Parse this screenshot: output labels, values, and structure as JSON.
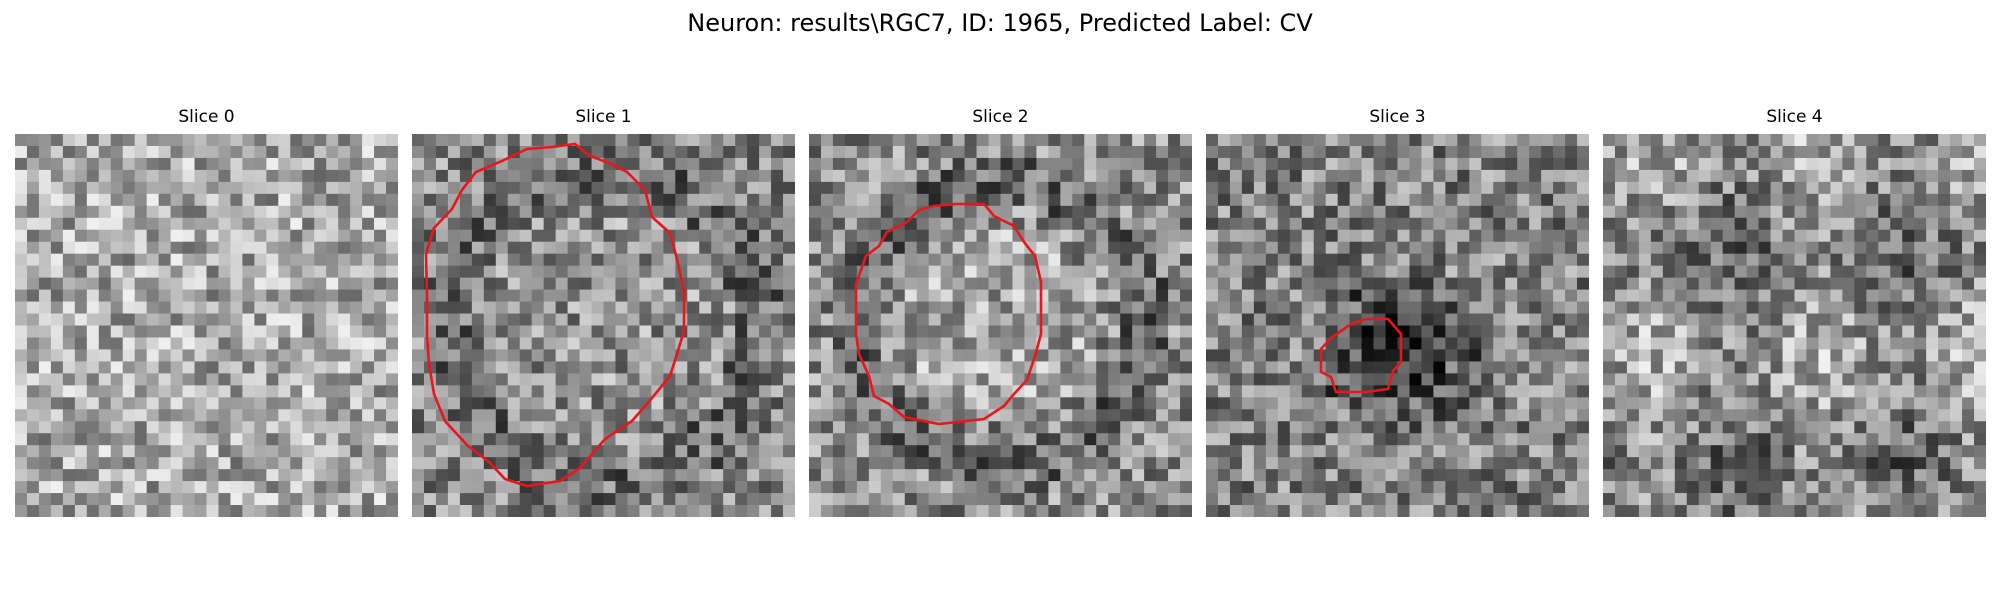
{
  "figure": {
    "title": "Neuron: results\\RGC7, ID: 1965, Predicted Label: CV"
  },
  "colors": {
    "contour": "#e8161d",
    "background": "#ffffff"
  },
  "panels": [
    {
      "title": "Slice 0",
      "contour": null
    },
    {
      "title": "Slice 1",
      "contour": "large-ring"
    },
    {
      "title": "Slice 2",
      "contour": "medium-ring"
    },
    {
      "title": "Slice 3",
      "contour": "small-ring"
    },
    {
      "title": "Slice 4",
      "contour": null
    }
  ]
}
